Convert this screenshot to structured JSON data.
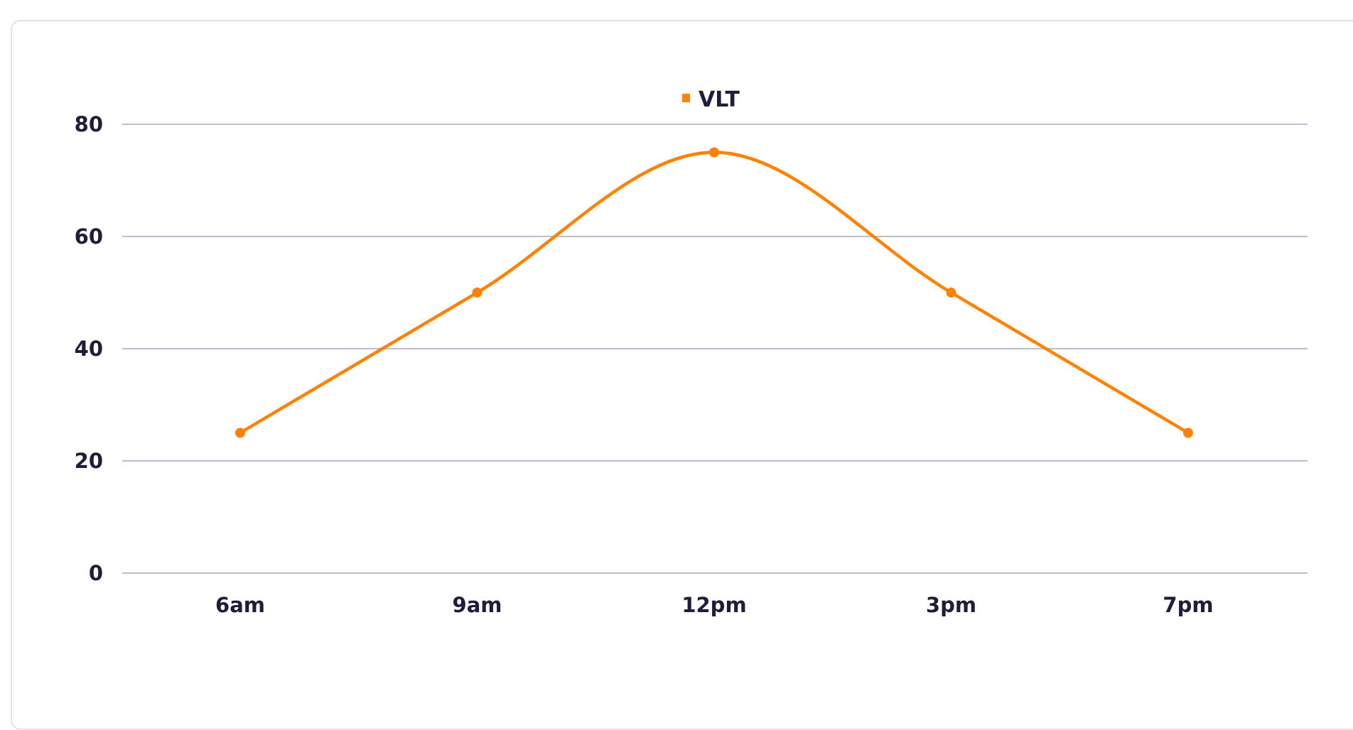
{
  "chart_data": {
    "type": "line",
    "categories": [
      "6am",
      "9am",
      "12pm",
      "3pm",
      "7pm"
    ],
    "series": [
      {
        "name": "VLT",
        "values": [
          25,
          50,
          75,
          50,
          25
        ],
        "color": "#ff8200"
      }
    ],
    "yticks": [
      0,
      20,
      40,
      60,
      80
    ],
    "ylim": [
      0,
      80
    ],
    "smooth": true,
    "grid": true,
    "legend_position": "top-center",
    "gridline_color": "#a9a8c0",
    "text_color": "#1f1d3a"
  }
}
